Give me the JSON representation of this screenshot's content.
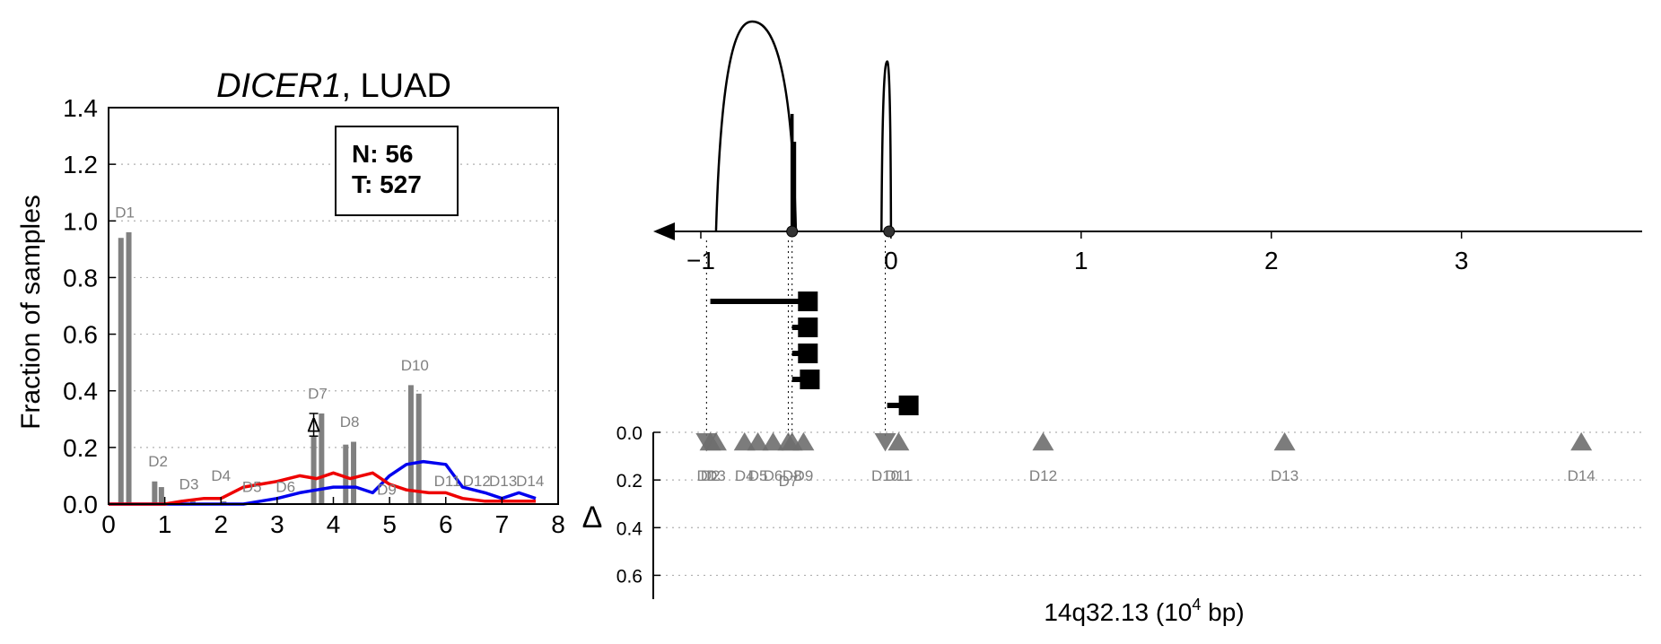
{
  "chart_data": [
    {
      "type": "bar",
      "title_gene": "DICER1",
      "title_rest": ", LUAD",
      "ylabel": "Fraction of samples",
      "xlim": [
        0,
        8
      ],
      "ylim": [
        0,
        1.4
      ],
      "x_ticks": [
        "0",
        "1",
        "2",
        "3",
        "4",
        "5",
        "6",
        "7",
        "8"
      ],
      "y_ticks": [
        "0.0",
        "0.2",
        "0.4",
        "0.6",
        "0.8",
        "1.0",
        "1.2",
        "1.4"
      ],
      "grid": true,
      "legend_box": {
        "n_label": "N: 56",
        "t_label": "T: 527"
      },
      "bars": [
        {
          "x": 0.22,
          "value": 0.94
        },
        {
          "x": 0.36,
          "value": 0.96
        },
        {
          "x": 0.82,
          "value": 0.08
        },
        {
          "x": 0.94,
          "value": 0.06
        },
        {
          "x": 1.5,
          "value": 0.01
        },
        {
          "x": 2.05,
          "value": 0.01
        },
        {
          "x": 3.65,
          "value": 0.24
        },
        {
          "x": 3.79,
          "value": 0.32
        },
        {
          "x": 4.22,
          "value": 0.21
        },
        {
          "x": 4.36,
          "value": 0.22
        },
        {
          "x": 5.38,
          "value": 0.42
        },
        {
          "x": 5.52,
          "value": 0.39
        }
      ],
      "bar_labels": [
        {
          "text": "D1",
          "x": 0.29,
          "y": 1.0
        },
        {
          "text": "D2",
          "x": 0.88,
          "y": 0.12
        },
        {
          "text": "D3",
          "x": 1.43,
          "y": 0.04
        },
        {
          "text": "D4",
          "x": 2.0,
          "y": 0.07
        },
        {
          "text": "D5",
          "x": 2.55,
          "y": 0.03
        },
        {
          "text": "D6",
          "x": 3.15,
          "y": 0.03
        },
        {
          "text": "D7",
          "x": 3.72,
          "y": 0.36
        },
        {
          "text": "D8",
          "x": 4.29,
          "y": 0.26
        },
        {
          "text": "D9",
          "x": 4.95,
          "y": 0.02
        },
        {
          "text": "D10",
          "x": 5.45,
          "y": 0.46
        },
        {
          "text": "D11",
          "x": 6.03,
          "y": 0.05
        },
        {
          "text": "D12",
          "x": 6.55,
          "y": 0.05
        },
        {
          "text": "D13",
          "x": 7.02,
          "y": 0.05
        },
        {
          "text": "D14",
          "x": 7.5,
          "y": 0.05
        }
      ],
      "delta_marker": {
        "text": "Δ",
        "x": 3.65,
        "y": 0.28,
        "err": 0.04
      },
      "series": [
        {
          "color": "#0000ee",
          "x": [
            0,
            1,
            1.5,
            2,
            2.4,
            2.7,
            3.0,
            3.4,
            3.7,
            4.0,
            4.4,
            4.7,
            5.0,
            5.3,
            5.6,
            6.0,
            6.3,
            6.7,
            7.0,
            7.3,
            7.6
          ],
          "y": [
            0,
            0,
            0,
            0,
            0,
            0.01,
            0.02,
            0.04,
            0.05,
            0.06,
            0.06,
            0.04,
            0.1,
            0.14,
            0.15,
            0.14,
            0.06,
            0.04,
            0.02,
            0.04,
            0.02
          ]
        },
        {
          "color": "#ee0000",
          "x": [
            0,
            1,
            1.3,
            1.7,
            2.0,
            2.4,
            2.7,
            3.0,
            3.4,
            3.7,
            4.0,
            4.3,
            4.7,
            5.0,
            5.3,
            5.7,
            6.0,
            6.3,
            6.7,
            7.0,
            7.3,
            7.6
          ],
          "y": [
            0,
            0,
            0.01,
            0.02,
            0.02,
            0.06,
            0.07,
            0.08,
            0.1,
            0.09,
            0.11,
            0.09,
            0.11,
            0.07,
            0.05,
            0.04,
            0.04,
            0.02,
            0.01,
            0.01,
            0.01,
            0.01
          ]
        }
      ]
    },
    {
      "type": "scatter",
      "xlabel": "14q32.13 (10",
      "xlabel_sup": "4",
      "xlabel_end": " bp)",
      "x_ticks": [
        "−1",
        "0",
        "1",
        "2",
        "3"
      ],
      "xlim": [
        -1.25,
        3.95
      ],
      "gene_arrows": [
        {
          "x_start": 0.5,
          "x_peak": 0.73,
          "x_end": 0.92,
          "height": 1.0
        },
        {
          "x_start": 0.0,
          "x_peak": 0.02,
          "x_end": 0.05,
          "height": 0.81
        }
      ],
      "nodes": [
        -0.52,
        -0.01
      ],
      "spike": {
        "x": -0.52,
        "height": 0.56
      },
      "structure_marks": [
        {
          "x1": -0.95,
          "x2": -0.47,
          "row": 0
        },
        {
          "x1": -0.52,
          "x2": -0.47,
          "row": 1
        },
        {
          "x1": -0.52,
          "x2": -0.47,
          "row": 2
        },
        {
          "x1": -0.52,
          "x2": -0.46,
          "row": 3
        },
        {
          "x1": -0.02,
          "x2": 0.06,
          "row": 4
        }
      ],
      "ylabel": "Δ",
      "y_ticks": [
        "0.0",
        "0.2",
        "0.4",
        "0.6"
      ],
      "ylim": [
        0,
        0.7
      ],
      "grid": true,
      "deltas": [
        {
          "label": "D1",
          "x": -0.97,
          "value": 0.04,
          "dir": "down"
        },
        {
          "label": "D2",
          "x": -0.95,
          "value": 0.04,
          "dir": "up"
        },
        {
          "label": "D3",
          "x": -0.92,
          "value": 0.04,
          "dir": "up"
        },
        {
          "label": "D4",
          "x": -0.77,
          "value": 0.04,
          "dir": "up"
        },
        {
          "label": "D5",
          "x": -0.7,
          "value": 0.04,
          "dir": "up"
        },
        {
          "label": "D6",
          "x": -0.62,
          "value": 0.04,
          "dir": "up"
        },
        {
          "label": "D7",
          "x": -0.54,
          "value": 0.04,
          "dir": "up"
        },
        {
          "label": "D8",
          "x": -0.52,
          "value": 0.04,
          "dir": "up"
        },
        {
          "label": "D9",
          "x": -0.46,
          "value": 0.04,
          "dir": "up"
        },
        {
          "label": "D10",
          "x": -0.03,
          "value": 0.04,
          "dir": "down"
        },
        {
          "label": "D11",
          "x": 0.04,
          "value": 0.04,
          "dir": "up"
        },
        {
          "label": "D12",
          "x": 0.8,
          "value": 0.04,
          "dir": "up"
        },
        {
          "label": "D13",
          "x": 2.07,
          "value": 0.04,
          "dir": "up"
        },
        {
          "label": "D14",
          "x": 3.63,
          "value": 0.04,
          "dir": "up"
        }
      ]
    }
  ]
}
